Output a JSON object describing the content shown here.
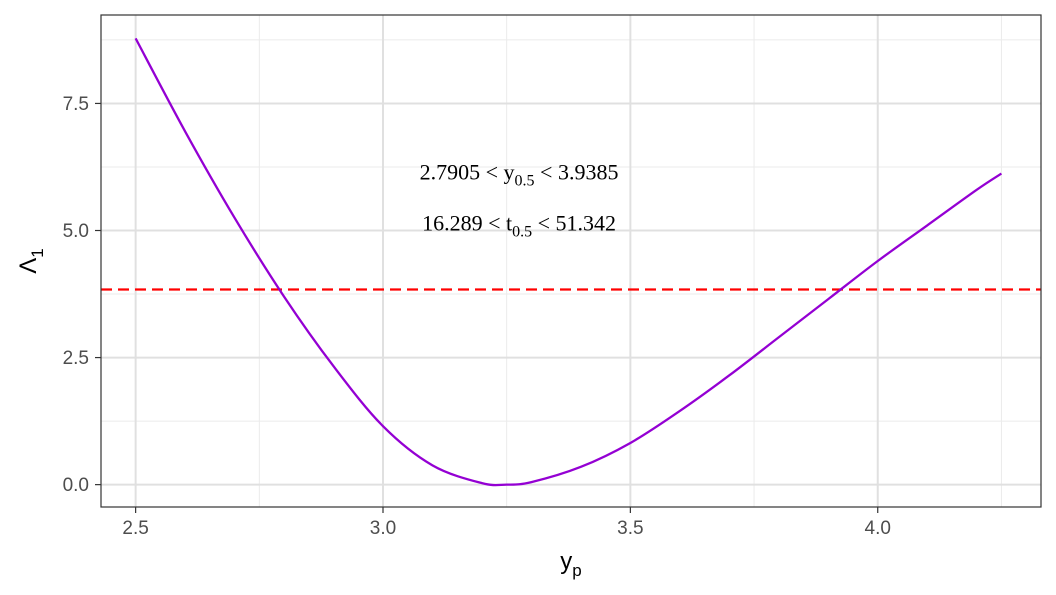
{
  "chart_data": {
    "type": "line",
    "xlabel": "y",
    "xlabel_sub": "p",
    "ylabel": "Λ",
    "ylabel_sub": "1",
    "xlim": [
      2.43,
      4.33
    ],
    "ylim": [
      -0.44,
      9.24
    ],
    "x_ticks": [
      2.5,
      3.0,
      3.5,
      4.0
    ],
    "x_tick_labels": [
      "2.5",
      "3.0",
      "3.5",
      "4.0"
    ],
    "y_ticks": [
      0.0,
      2.5,
      5.0,
      7.5
    ],
    "y_tick_labels": [
      "0.0",
      "2.5",
      "5.0",
      "7.5"
    ],
    "grid": true,
    "series": [
      {
        "color": "#9400D3",
        "x": [
          2.5,
          2.6,
          2.7,
          2.8,
          2.9,
          3.0,
          3.1,
          3.2,
          3.25,
          3.3,
          3.4,
          3.5,
          3.6,
          3.7,
          3.8,
          3.9,
          4.0,
          4.1,
          4.2,
          4.25
        ],
        "y": [
          8.78,
          6.95,
          5.25,
          3.7,
          2.33,
          1.15,
          0.38,
          0.03,
          0.0,
          0.05,
          0.35,
          0.82,
          1.45,
          2.15,
          2.9,
          3.65,
          4.4,
          5.1,
          5.8,
          6.12
        ]
      }
    ],
    "hline": {
      "y": 3.84,
      "color": "#FF0000",
      "style": "dashed"
    },
    "annotations": [
      {
        "parts": [
          "2.7905 < y",
          "0.5",
          " < 3.9385"
        ],
        "x": 3.275,
        "y": 6.0
      },
      {
        "parts": [
          "16.289 < t",
          "0.5",
          " < 51.342"
        ],
        "x": 3.275,
        "y": 5.0
      }
    ]
  }
}
